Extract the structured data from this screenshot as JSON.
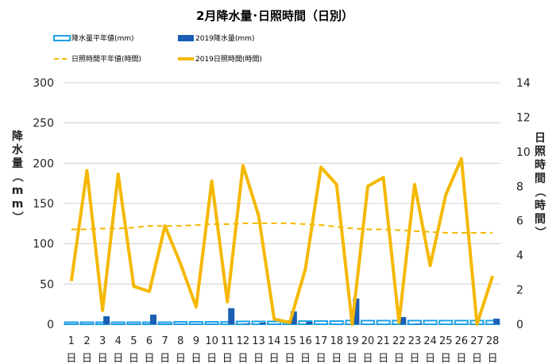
{
  "chart_data": {
    "type": "bar",
    "title": "2月降水量･日照時間（日別）",
    "categories": [
      "1",
      "2",
      "3",
      "4",
      "5",
      "6",
      "7",
      "8",
      "9",
      "10",
      "11",
      "12",
      "13",
      "14",
      "15",
      "16",
      "17",
      "18",
      "19",
      "20",
      "21",
      "22",
      "23",
      "24",
      "25",
      "26",
      "27",
      "28"
    ],
    "category_suffix": "日",
    "y_left": {
      "label": "降水量（mm）",
      "ylim": [
        0,
        300
      ],
      "ticks": [
        0,
        50,
        100,
        150,
        200,
        250,
        300
      ]
    },
    "y_right": {
      "label": "日照時間（時間）",
      "ylim": [
        0,
        14
      ],
      "ticks": [
        0,
        2,
        4,
        6,
        8,
        10,
        12,
        14
      ]
    },
    "grid": true,
    "legend_position": "top",
    "series": [
      {
        "name": "降水量平年値(mm)",
        "type": "bar-outline",
        "axis": "left",
        "color": "#1ea0e6",
        "values": [
          2.5,
          2.5,
          2.5,
          2.5,
          2.5,
          2.5,
          2.5,
          3,
          3,
          3,
          3,
          3.5,
          3.5,
          3.5,
          4,
          4,
          4,
          4,
          4.5,
          4.5,
          4.5,
          4.5,
          4.5,
          4.5,
          4.5,
          4.5,
          4.5,
          4.5
        ]
      },
      {
        "name": "2019降水量(mm)",
        "type": "bar",
        "axis": "left",
        "color": "#1a5fb4",
        "values": [
          0,
          0,
          10,
          0,
          0,
          12,
          0,
          0,
          0,
          0,
          20,
          1,
          2,
          0,
          16,
          3,
          0,
          0,
          32,
          0,
          0,
          9,
          1,
          0,
          0,
          0,
          0,
          7
        ]
      },
      {
        "name": "日照時間平年値(時間)",
        "type": "line-dashed",
        "axis": "right",
        "color": "#f5b800",
        "values": [
          5.5,
          5.5,
          5.55,
          5.55,
          5.6,
          5.7,
          5.7,
          5.7,
          5.75,
          5.8,
          5.8,
          5.85,
          5.85,
          5.85,
          5.85,
          5.8,
          5.75,
          5.65,
          5.55,
          5.5,
          5.5,
          5.45,
          5.4,
          5.35,
          5.3,
          5.3,
          5.3,
          5.3
        ]
      },
      {
        "name": "2019日照時間(時間)",
        "type": "line",
        "axis": "right",
        "color": "#f5b800",
        "values": [
          2.5,
          8.9,
          0.8,
          8.7,
          2.2,
          1.9,
          5.7,
          3.5,
          1.0,
          8.3,
          1.3,
          9.2,
          6.3,
          0.3,
          0.1,
          3.2,
          9.1,
          8.1,
          0.0,
          8.0,
          8.5,
          0.1,
          8.1,
          3.4,
          7.5,
          9.6,
          0.0,
          2.8
        ]
      }
    ]
  }
}
